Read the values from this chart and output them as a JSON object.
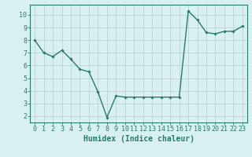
{
  "x": [
    0,
    1,
    2,
    3,
    4,
    5,
    6,
    7,
    8,
    9,
    10,
    11,
    12,
    13,
    14,
    15,
    16,
    17,
    18,
    19,
    20,
    21,
    22,
    23
  ],
  "y": [
    8.0,
    7.0,
    6.7,
    7.2,
    6.5,
    5.7,
    5.5,
    3.9,
    1.9,
    3.6,
    3.5,
    3.5,
    3.5,
    3.5,
    3.5,
    3.5,
    3.5,
    10.3,
    9.6,
    8.6,
    8.5,
    8.7,
    8.7,
    9.1
  ],
  "line_color": "#2a7a6a",
  "marker": "D",
  "marker_size": 1.8,
  "line_width": 1.0,
  "xlabel": "Humidex (Indice chaleur)",
  "xlabel_fontsize": 7,
  "bg_color": "#d8f0f0",
  "grid_color": "#c0d4d4",
  "tick_color": "#2a7a6a",
  "axis_color": "#2a7a6a",
  "xlim": [
    -0.5,
    23.5
  ],
  "ylim": [
    1.5,
    10.8
  ],
  "yticks": [
    2,
    3,
    4,
    5,
    6,
    7,
    8,
    9,
    10
  ],
  "xticks": [
    0,
    1,
    2,
    3,
    4,
    5,
    6,
    7,
    8,
    9,
    10,
    11,
    12,
    13,
    14,
    15,
    16,
    17,
    18,
    19,
    20,
    21,
    22,
    23
  ],
  "tick_fontsize": 6
}
